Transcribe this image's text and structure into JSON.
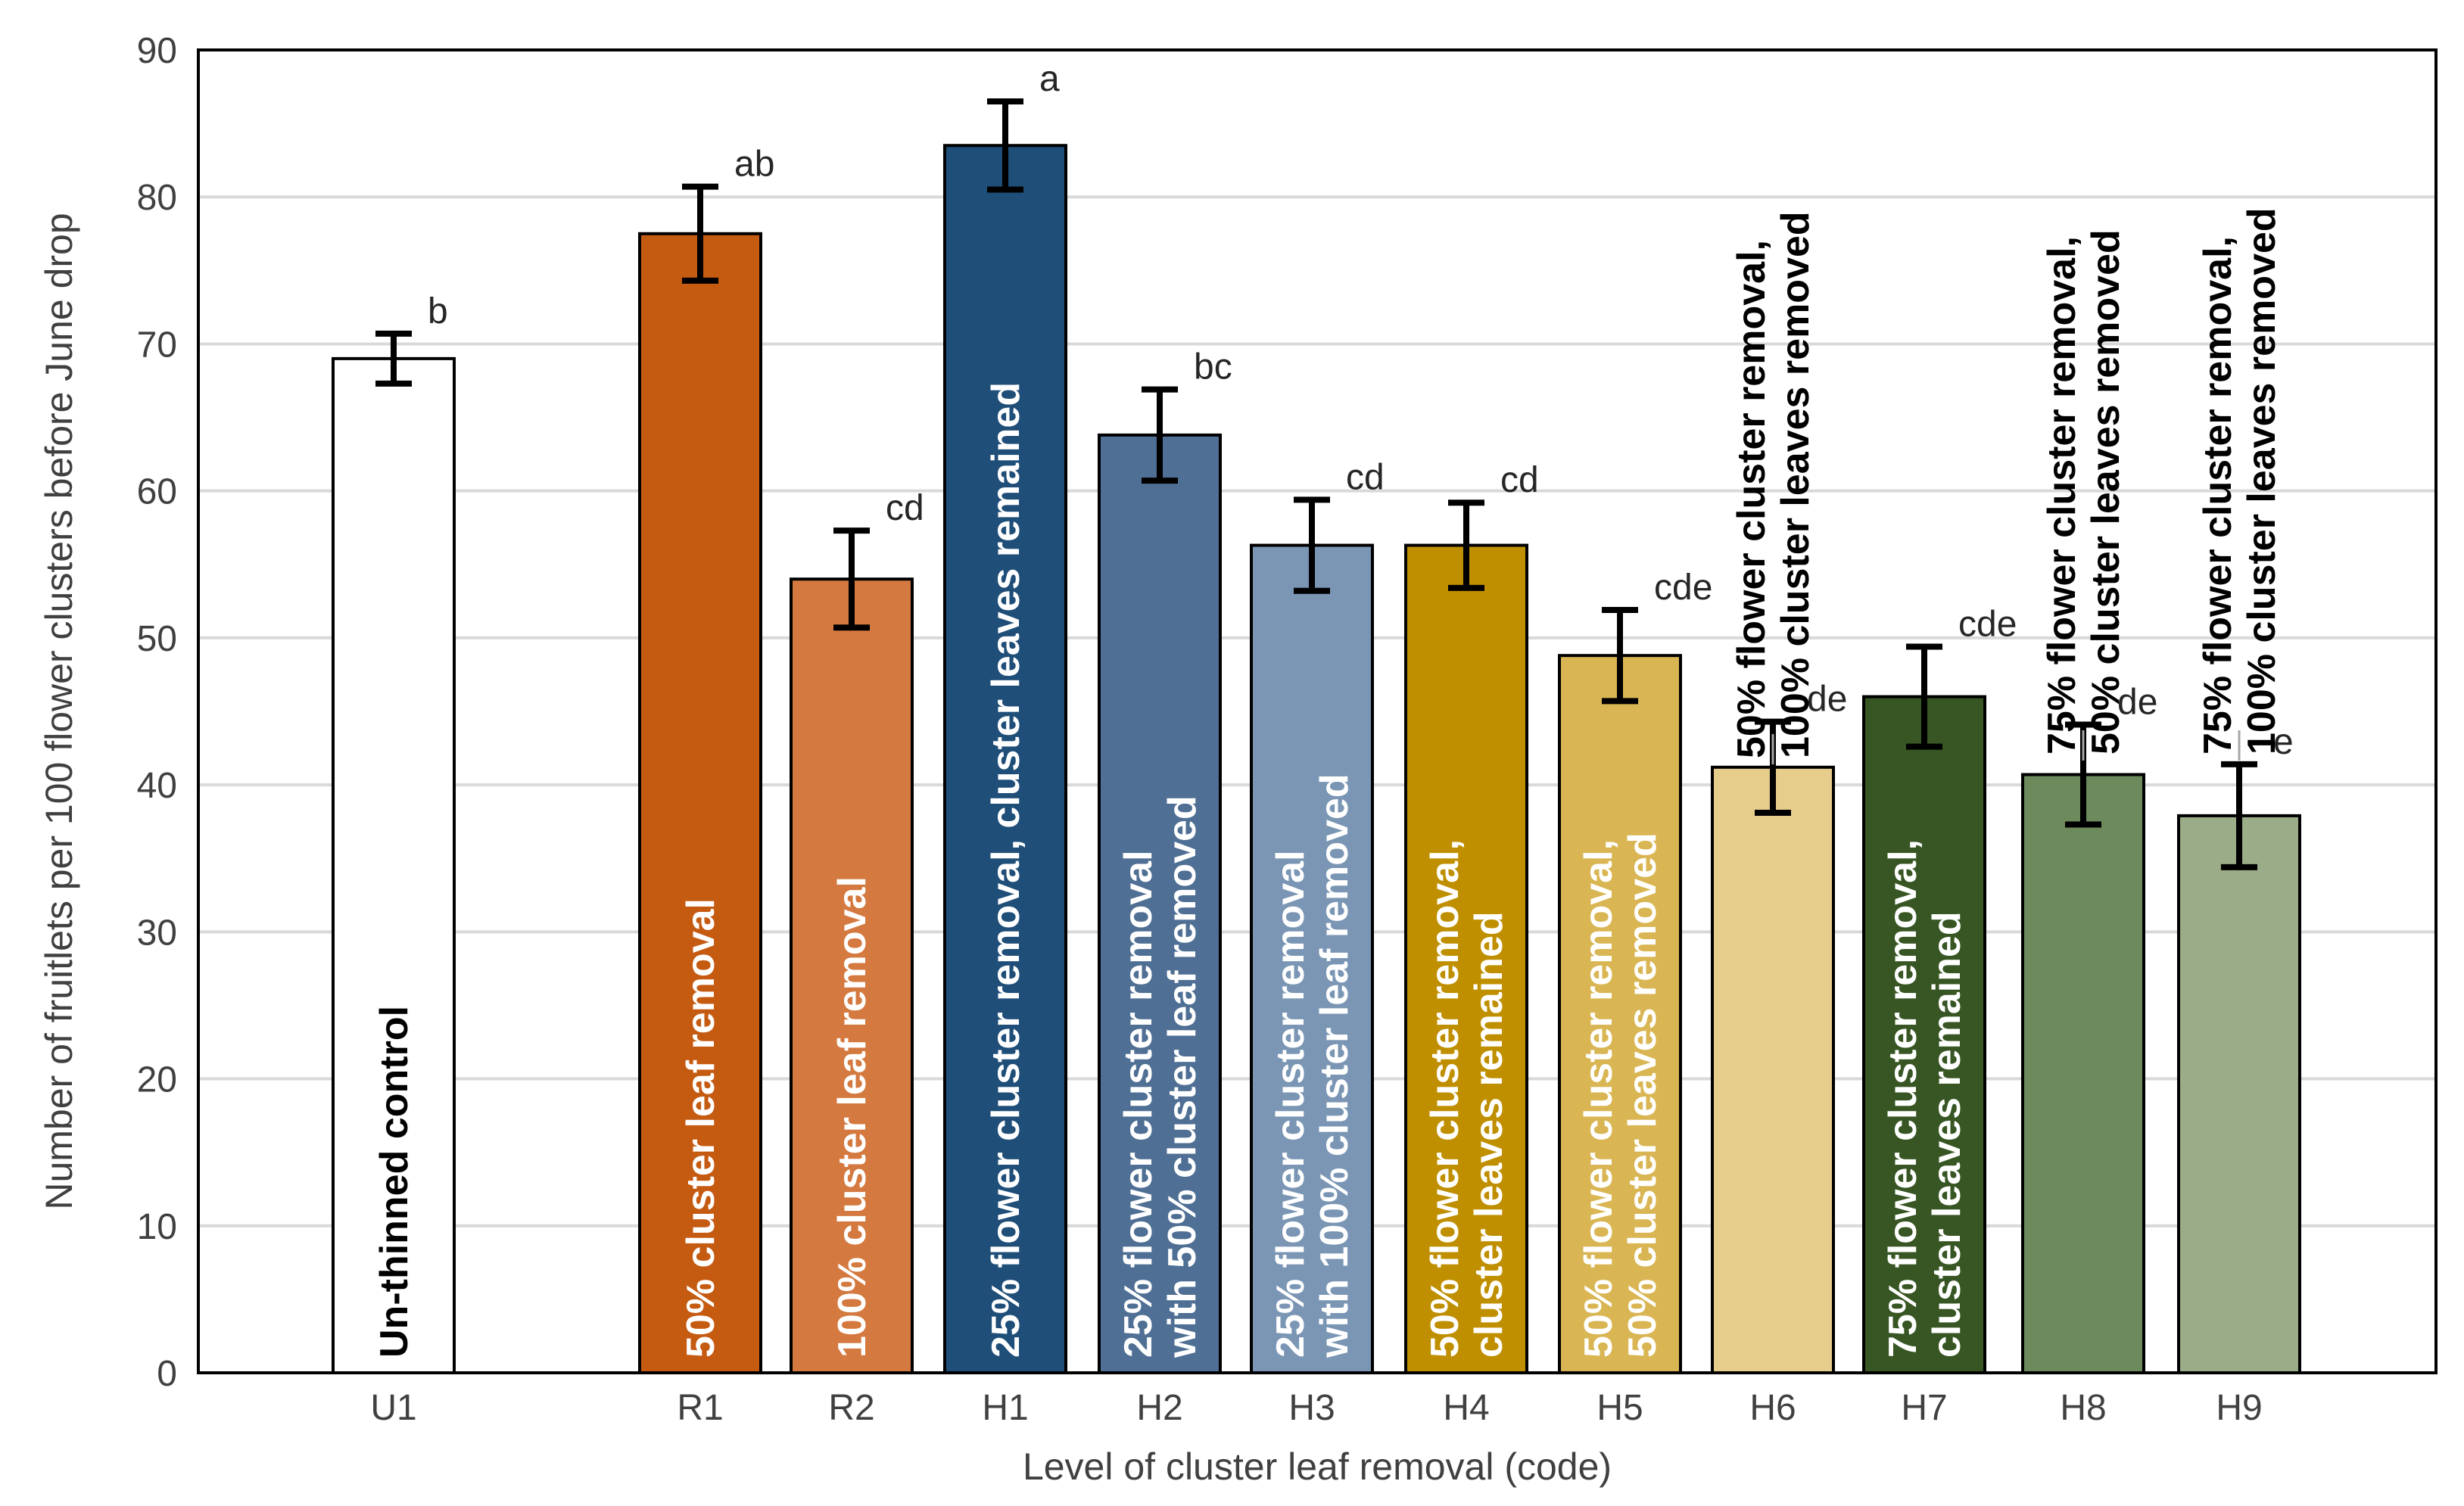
{
  "chart_data": {
    "type": "bar",
    "title": "",
    "xlabel": "Level of cluster leaf removal (code)",
    "ylabel": "Number of fruitlets per 100 flower clusters before June drop",
    "ylim": [
      0,
      90
    ],
    "yticks": [
      0,
      10,
      20,
      30,
      40,
      50,
      60,
      70,
      80,
      90
    ],
    "grid": true,
    "categories": [
      "U1",
      "R1",
      "R2",
      "H1",
      "H2",
      "H3",
      "H4",
      "H5",
      "H6",
      "H7",
      "H8",
      "H9"
    ],
    "values": [
      69,
      77.5,
      54,
      83.5,
      63.8,
      56.3,
      56.3,
      48.8,
      41.2,
      46,
      40.7,
      37.9
    ],
    "errors": [
      1.7,
      3.2,
      3.3,
      3,
      3.1,
      3.1,
      2.9,
      3.1,
      3.1,
      3.4,
      3.4,
      3.5
    ],
    "significance": [
      "b",
      "ab",
      "cd",
      "a",
      "bc",
      "cd",
      "cd",
      "cde",
      "de",
      "cde",
      "de",
      "e"
    ],
    "colors": [
      "#ffffff",
      "#c55a11",
      "#d4793f",
      "#1f4e79",
      "#4f6f94",
      "#7a96b4",
      "#bf8f00",
      "#d9b653",
      "#e6cd8c",
      "#375623",
      "#6c8a5c",
      "#9bac89"
    ],
    "bar_labels": [
      [
        "Un-thinned control"
      ],
      [
        "50% cluster leaf removal"
      ],
      [
        "100% cluster leaf removal"
      ],
      [
        "25% flower cluster removal, cluster leaves remained"
      ],
      [
        "25% flower cluster removal",
        "with 50% cluster leaf removed"
      ],
      [
        "25% flower cluster removal",
        "with 100% cluster leaf removed"
      ],
      [
        "50% flower cluster removal,",
        "cluster leaves remained"
      ],
      [
        "50% flower cluster removal,",
        "50% cluster leaves removed"
      ],
      [
        "50% flower cluster removal,",
        "100% cluster leaves removed"
      ],
      [
        "75% flower cluster removal,",
        "cluster leaves remained"
      ],
      [
        "75% flower cluster removal,",
        "50% cluster leaves removed"
      ],
      [
        "75% flower cluster removal,",
        "100% cluster leaves removed"
      ]
    ],
    "label_colors": [
      "#000000",
      "#ffffff",
      "#ffffff",
      "#ffffff",
      "#ffffff",
      "#ffffff",
      "#ffffff",
      "#ffffff",
      "#000000",
      "#ffffff",
      "#000000",
      "#000000"
    ],
    "label_outside": [
      false,
      false,
      false,
      false,
      false,
      false,
      false,
      false,
      true,
      false,
      true,
      true
    ]
  }
}
